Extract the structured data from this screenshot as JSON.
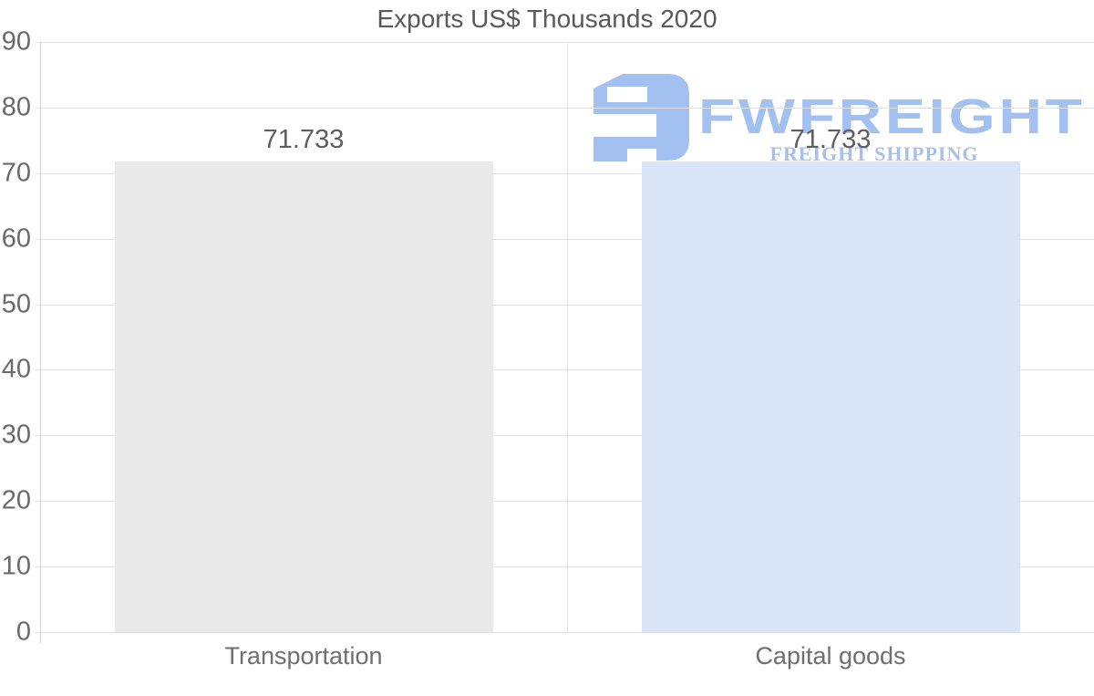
{
  "chart_data": {
    "type": "bar",
    "title": "Exports US$ Thousands 2020",
    "xlabel": "",
    "ylabel": "",
    "categories": [
      "Transportation",
      "Capital goods"
    ],
    "values": [
      71.733,
      71.733
    ],
    "value_labels": [
      "71.733",
      "71.733"
    ],
    "bar_colors": [
      "#e9e9e9",
      "#d8e6f8"
    ],
    "ylim": [
      0,
      90
    ],
    "ytick_interval": 10,
    "yticks": [
      0,
      10,
      20,
      30,
      40,
      50,
      60,
      70,
      80,
      90
    ],
    "grid": "horizontal gridlines on, vertical separator between categories",
    "legend": "none"
  },
  "watermark": {
    "brand": "FWFREIGHT",
    "tagline": "FREIGHT SHIPPING",
    "logo_icon": "fw-monogram-icon",
    "brand_color": "#a3c1f0",
    "tagline_color": "#a9bfe7"
  },
  "colors": {
    "background": "#ffffff",
    "gridline": "#e2e2e2",
    "axis_line": "#d2d2d2",
    "title_text": "#595959",
    "axis_label_text": "#6a6a6a",
    "category_label_text": "#6f6f6f",
    "value_label_text": "#5e5e5e"
  }
}
